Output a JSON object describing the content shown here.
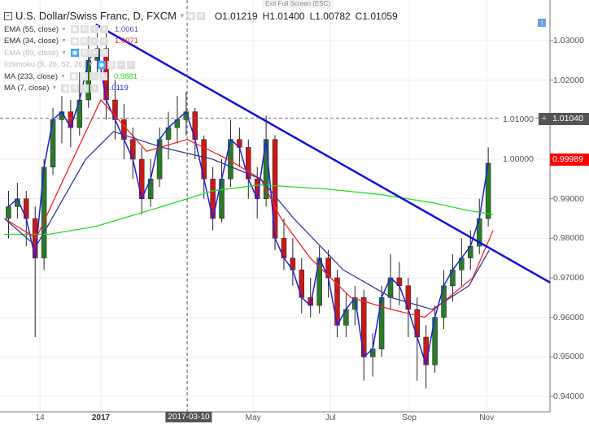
{
  "header": {
    "title": "U.S. Dollar/Swiss Franc, D, FXCM",
    "open": "O1.01219",
    "high": "H1.01400",
    "low": "L1.00782",
    "close": "C1.01059",
    "exit_fullscreen": "Exit Full Screen (ESC)"
  },
  "indicators": [
    {
      "label": "EMA (55, close)",
      "value": "1.0061",
      "color": "#5050b0",
      "faded": false
    },
    {
      "label": "EMA (34, close)",
      "value": "1.0071",
      "color": "#ff2020",
      "faded": false
    },
    {
      "label": "EMA (89, close)",
      "value": "",
      "color": "#bbbbbb",
      "faded": true
    },
    {
      "label": "Ichimoku (9, 26, 52, 26)",
      "value": "",
      "color": "#bbbbbb",
      "faded": true
    },
    {
      "label": "MA (233, close)",
      "value": "0.9881",
      "color": "#22dd22",
      "faded": false
    },
    {
      "label": "MA (7, close)",
      "value": "1.0119",
      "color": "#1f1fe0",
      "faded": false
    }
  ],
  "crosshair": {
    "date_label": "2017-03-10",
    "price_label": "1.01040",
    "price": 1.0104,
    "date": "2017-03-10"
  },
  "last_price": {
    "label": "0.99989",
    "value": 0.99989,
    "color": "#ff0000"
  },
  "chart_data": {
    "type": "candlestick",
    "y_ticks": [
      "1.03000",
      "1.02000",
      "1.01000",
      "1.00000",
      "0.99000",
      "0.98000",
      "0.97000",
      "0.96000",
      "0.95000",
      "0.94000"
    ],
    "ylim": [
      0.9365,
      1.0402
    ],
    "x_ticks": [
      {
        "date": "2016-11-14",
        "label": "14",
        "bold": false
      },
      {
        "date": "2017-01-01",
        "label": "2017",
        "bold": true
      },
      {
        "date": "2017-05-01",
        "label": "May",
        "bold": false
      },
      {
        "date": "2017-07-01",
        "label": "Jul",
        "bold": false
      },
      {
        "date": "2017-09-01",
        "label": "Sep",
        "bold": false
      },
      {
        "date": "2017-11-01",
        "label": "Nov",
        "bold": false
      }
    ],
    "xlim": [
      "2016-10-14",
      "2017-12-21"
    ],
    "grid": true,
    "candles": [
      [
        "2016-10-17",
        0.985,
        0.992,
        0.98,
        0.988
      ],
      [
        "2016-10-24",
        0.988,
        0.994,
        0.985,
        0.99
      ],
      [
        "2016-10-31",
        0.99,
        0.992,
        0.978,
        0.985
      ],
      [
        "2016-11-07",
        0.985,
        0.988,
        0.955,
        0.975
      ],
      [
        "2016-11-14",
        0.975,
        1.0,
        0.972,
        0.998
      ],
      [
        "2016-11-21",
        0.998,
        1.013,
        0.996,
        1.01
      ],
      [
        "2016-11-28",
        1.01,
        1.016,
        1.004,
        1.012
      ],
      [
        "2016-12-05",
        1.012,
        1.015,
        1.003,
        1.008
      ],
      [
        "2016-12-12",
        1.008,
        1.022,
        1.006,
        1.015
      ],
      [
        "2016-12-19",
        1.015,
        1.031,
        1.013,
        1.025
      ],
      [
        "2016-12-26",
        1.025,
        1.034,
        1.02,
        1.028
      ],
      [
        "2017-01-02",
        1.028,
        1.032,
        1.01,
        1.015
      ],
      [
        "2017-01-09",
        1.015,
        1.02,
        1.005,
        1.01
      ],
      [
        "2017-01-16",
        1.01,
        1.014,
        1.0,
        1.005
      ],
      [
        "2017-01-23",
        1.005,
        1.008,
        0.995,
        1.0
      ],
      [
        "2017-01-30",
        1.0,
        1.003,
        0.986,
        0.99
      ],
      [
        "2017-02-06",
        0.99,
        1.0,
        0.988,
        0.995
      ],
      [
        "2017-02-13",
        0.995,
        1.008,
        0.993,
        1.005
      ],
      [
        "2017-02-20",
        1.005,
        1.012,
        1.0,
        1.008
      ],
      [
        "2017-02-27",
        1.008,
        1.016,
        1.004,
        1.01
      ],
      [
        "2017-03-06",
        1.01,
        1.017,
        1.006,
        1.012
      ],
      [
        "2017-03-13",
        1.012,
        1.013,
        1.0,
        1.005
      ],
      [
        "2017-03-20",
        1.005,
        1.006,
        0.99,
        0.995
      ],
      [
        "2017-03-27",
        0.995,
        0.998,
        0.982,
        0.985
      ],
      [
        "2017-04-03",
        0.985,
        1.0,
        0.984,
        0.995
      ],
      [
        "2017-04-10",
        0.995,
        1.01,
        0.993,
        1.005
      ],
      [
        "2017-04-17",
        1.005,
        1.008,
        0.998,
        1.003
      ],
      [
        "2017-04-24",
        1.003,
        1.005,
        0.99,
        0.995
      ],
      [
        "2017-05-01",
        0.995,
        0.998,
        0.985,
        0.99
      ],
      [
        "2017-05-08",
        0.99,
        1.011,
        0.988,
        1.005
      ],
      [
        "2017-05-15",
        1.005,
        1.006,
        0.977,
        0.98
      ],
      [
        "2017-05-22",
        0.98,
        0.985,
        0.972,
        0.975
      ],
      [
        "2017-05-29",
        0.975,
        0.98,
        0.968,
        0.972
      ],
      [
        "2017-06-05",
        0.972,
        0.975,
        0.961,
        0.965
      ],
      [
        "2017-06-12",
        0.965,
        0.97,
        0.96,
        0.963
      ],
      [
        "2017-06-19",
        0.963,
        0.978,
        0.961,
        0.975
      ],
      [
        "2017-06-26",
        0.975,
        0.977,
        0.965,
        0.97
      ],
      [
        "2017-07-03",
        0.97,
        0.972,
        0.955,
        0.958
      ],
      [
        "2017-07-10",
        0.958,
        0.966,
        0.955,
        0.962
      ],
      [
        "2017-07-17",
        0.962,
        0.968,
        0.958,
        0.965
      ],
      [
        "2017-07-24",
        0.965,
        0.967,
        0.944,
        0.95
      ],
      [
        "2017-07-31",
        0.95,
        0.956,
        0.945,
        0.952
      ],
      [
        "2017-08-07",
        0.952,
        0.968,
        0.95,
        0.965
      ],
      [
        "2017-08-14",
        0.965,
        0.976,
        0.962,
        0.97
      ],
      [
        "2017-08-21",
        0.97,
        0.974,
        0.963,
        0.968
      ],
      [
        "2017-08-28",
        0.968,
        0.97,
        0.955,
        0.962
      ],
      [
        "2017-09-04",
        0.962,
        0.965,
        0.944,
        0.955
      ],
      [
        "2017-09-11",
        0.955,
        0.958,
        0.942,
        0.948
      ],
      [
        "2017-09-18",
        0.948,
        0.963,
        0.946,
        0.96
      ],
      [
        "2017-09-25",
        0.96,
        0.972,
        0.957,
        0.968
      ],
      [
        "2017-10-02",
        0.968,
        0.976,
        0.964,
        0.972
      ],
      [
        "2017-10-09",
        0.972,
        0.98,
        0.968,
        0.975
      ],
      [
        "2017-10-16",
        0.975,
        0.982,
        0.972,
        0.978
      ],
      [
        "2017-10-23",
        0.978,
        0.99,
        0.976,
        0.985
      ],
      [
        "2017-10-30",
        0.985,
        1.003,
        0.983,
        0.999
      ]
    ],
    "lines": [
      {
        "name": "MA (233, close)",
        "color": "#22dd22",
        "points": [
          [
            "2016-10-17",
            0.981
          ],
          [
            "2016-11-21",
            0.981
          ],
          [
            "2016-12-28",
            0.983
          ],
          [
            "2017-02-18",
            0.988
          ],
          [
            "2017-03-30",
            0.992
          ],
          [
            "2017-05-07",
            0.9935
          ],
          [
            "2017-06-27",
            0.9925
          ],
          [
            "2017-08-11",
            0.991
          ],
          [
            "2017-09-19",
            0.989
          ],
          [
            "2017-10-18",
            0.987
          ],
          [
            "2017-11-06",
            0.986
          ]
        ]
      },
      {
        "name": "EMA (34, close)",
        "color": "#ff2020",
        "points": [
          [
            "2016-10-17",
            0.985
          ],
          [
            "2016-11-11",
            0.98
          ],
          [
            "2016-12-07",
            0.998
          ],
          [
            "2017-01-01",
            1.015
          ],
          [
            "2017-02-06",
            1.002
          ],
          [
            "2017-03-10",
            1.005
          ],
          [
            "2017-04-11",
            1.0
          ],
          [
            "2017-05-07",
            0.995
          ],
          [
            "2017-05-23",
            0.985
          ],
          [
            "2017-06-15",
            0.975
          ],
          [
            "2017-07-17",
            0.965
          ],
          [
            "2017-08-18",
            0.962
          ],
          [
            "2017-09-13",
            0.96
          ],
          [
            "2017-10-02",
            0.965
          ],
          [
            "2017-10-21",
            0.97
          ],
          [
            "2017-11-06",
            0.982
          ]
        ]
      },
      {
        "name": "EMA (55, close)",
        "color": "#3a3a9a",
        "points": [
          [
            "2016-10-17",
            0.985
          ],
          [
            "2016-11-11",
            0.978
          ],
          [
            "2016-12-20",
            1.0
          ],
          [
            "2017-01-11",
            1.007
          ],
          [
            "2017-02-18",
            1.003
          ],
          [
            "2017-03-30",
            1.0
          ],
          [
            "2017-05-07",
            0.995
          ],
          [
            "2017-06-02",
            0.985
          ],
          [
            "2017-07-11",
            0.972
          ],
          [
            "2017-08-18",
            0.965
          ],
          [
            "2017-09-19",
            0.962
          ],
          [
            "2017-10-18",
            0.968
          ],
          [
            "2017-11-03",
            0.977
          ]
        ]
      }
    ],
    "trendline": {
      "color": "#1010e0",
      "points": [
        [
          "2016-12-28",
          1.0341
        ],
        [
          "2017-12-21",
          0.9688
        ]
      ]
    }
  }
}
